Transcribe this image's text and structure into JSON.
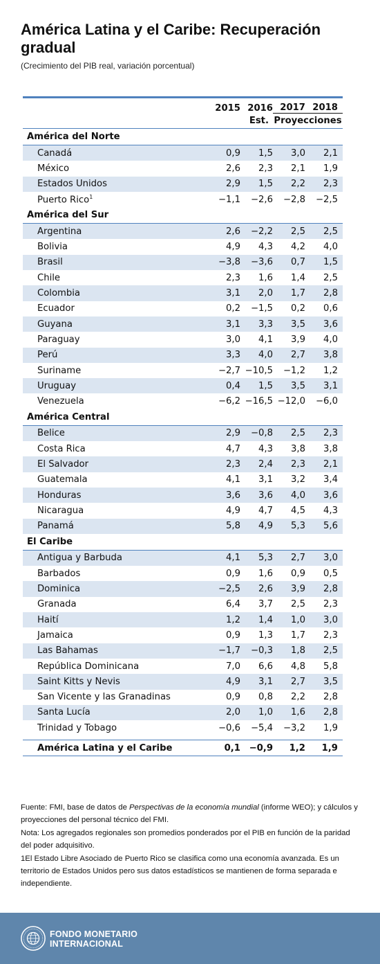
{
  "title": "América Latina y el Caribe: Recuperación gradual",
  "subtitle": "(Crecimiento del PIB real, variación porcentual)",
  "chart_data": {
    "type": "table",
    "columns": [
      "2015",
      "2016",
      "2017",
      "2018"
    ],
    "subheader": {
      "est": "Est.",
      "proj": "Proyecciones"
    },
    "groups": [
      {
        "name": "América del Norte",
        "rows": [
          {
            "label": "Canadá",
            "values": [
              "0,9",
              "1,5",
              "3,0",
              "2,1"
            ]
          },
          {
            "label": "México",
            "values": [
              "2,6",
              "2,3",
              "2,1",
              "1,9"
            ]
          },
          {
            "label": "Estados Unidos",
            "values": [
              "2,9",
              "1,5",
              "2,2",
              "2,3"
            ]
          },
          {
            "label": "Puerto Rico",
            "sup": "1",
            "values": [
              "−1,1",
              "−2,6",
              "−2,8",
              "−2,5"
            ]
          }
        ]
      },
      {
        "name": "América del Sur",
        "rows": [
          {
            "label": "Argentina",
            "values": [
              "2,6",
              "−2,2",
              "2,5",
              "2,5"
            ]
          },
          {
            "label": "Bolivia",
            "values": [
              "4,9",
              "4,3",
              "4,2",
              "4,0"
            ]
          },
          {
            "label": "Brasil",
            "values": [
              "−3,8",
              "−3,6",
              "0,7",
              "1,5"
            ]
          },
          {
            "label": "Chile",
            "values": [
              "2,3",
              "1,6",
              "1,4",
              "2,5"
            ]
          },
          {
            "label": "Colombia",
            "values": [
              "3,1",
              "2,0",
              "1,7",
              "2,8"
            ]
          },
          {
            "label": "Ecuador",
            "values": [
              "0,2",
              "−1,5",
              "0,2",
              "0,6"
            ]
          },
          {
            "label": "Guyana",
            "values": [
              "3,1",
              "3,3",
              "3,5",
              "3,6"
            ]
          },
          {
            "label": "Paraguay",
            "values": [
              "3,0",
              "4,1",
              "3,9",
              "4,0"
            ]
          },
          {
            "label": "Perú",
            "values": [
              "3,3",
              "4,0",
              "2,7",
              "3,8"
            ]
          },
          {
            "label": "Suriname",
            "values": [
              "−2,7",
              "−10,5",
              "−1,2",
              "1,2"
            ]
          },
          {
            "label": "Uruguay",
            "values": [
              "0,4",
              "1,5",
              "3,5",
              "3,1"
            ]
          },
          {
            "label": "Venezuela",
            "values": [
              "−6,2",
              "−16,5",
              "−12,0",
              "−6,0"
            ]
          }
        ]
      },
      {
        "name": "América Central",
        "rows": [
          {
            "label": "Belice",
            "values": [
              "2,9",
              "−0,8",
              "2,5",
              "2,3"
            ]
          },
          {
            "label": "Costa Rica",
            "values": [
              "4,7",
              "4,3",
              "3,8",
              "3,8"
            ]
          },
          {
            "label": "El Salvador",
            "values": [
              "2,3",
              "2,4",
              "2,3",
              "2,1"
            ]
          },
          {
            "label": "Guatemala",
            "values": [
              "4,1",
              "3,1",
              "3,2",
              "3,4"
            ]
          },
          {
            "label": "Honduras",
            "values": [
              "3,6",
              "3,6",
              "4,0",
              "3,6"
            ]
          },
          {
            "label": "Nicaragua",
            "values": [
              "4,9",
              "4,7",
              "4,5",
              "4,3"
            ]
          },
          {
            "label": "Panamá",
            "values": [
              "5,8",
              "4,9",
              "5,3",
              "5,6"
            ]
          }
        ]
      },
      {
        "name": "El Caribe",
        "rows": [
          {
            "label": "Antigua y Barbuda",
            "values": [
              "4,1",
              "5,3",
              "2,7",
              "3,0"
            ]
          },
          {
            "label": "Barbados",
            "values": [
              "0,9",
              "1,6",
              "0,9",
              "0,5"
            ]
          },
          {
            "label": "Dominica",
            "values": [
              "−2,5",
              "2,6",
              "3,9",
              "2,8"
            ]
          },
          {
            "label": "Granada",
            "values": [
              "6,4",
              "3,7",
              "2,5",
              "2,3"
            ]
          },
          {
            "label": "Haití",
            "values": [
              "1,2",
              "1,4",
              "1,0",
              "3,0"
            ]
          },
          {
            "label": "Jamaica",
            "values": [
              "0,9",
              "1,3",
              "1,7",
              "2,3"
            ]
          },
          {
            "label": "Las Bahamas",
            "values": [
              "−1,7",
              "−0,3",
              "1,8",
              "2,5"
            ]
          },
          {
            "label": "República Dominicana",
            "values": [
              "7,0",
              "6,6",
              "4,8",
              "5,8"
            ]
          },
          {
            "label": "Saint Kitts y Nevis",
            "values": [
              "4,9",
              "3,1",
              "2,7",
              "3,5"
            ]
          },
          {
            "label": "San Vicente y las Granadinas",
            "values": [
              "0,9",
              "0,8",
              "2,2",
              "2,8"
            ]
          },
          {
            "label": "Santa Lucía",
            "values": [
              "2,0",
              "1,0",
              "1,6",
              "2,8"
            ]
          },
          {
            "label": "Trinidad y Tobago",
            "values": [
              "−0,6",
              "−5,4",
              "−3,2",
              "1,9"
            ]
          }
        ]
      }
    ],
    "total": {
      "label": "América Latina y el Caribe",
      "values": [
        "0,1",
        "−0,9",
        "1,2",
        "1,9"
      ]
    }
  },
  "notes": {
    "source_a": "Fuente: FMI, base de datos de ",
    "source_italic": "Perspectivas de la economía mundial",
    "source_b": " (informe WEO); y cálculos y proyecciones del personal técnico del FMI.",
    "note": "Nota: Los agregados regionales son promedios ponderados por el PIB en función de la paridad del poder adquisitivo.",
    "footnote1": "1El Estado Libre Asociado de Puerto Rico se clasifica como una economía avanzada. Es un territorio de Estados Unidos pero sus datos estadísticos se mantienen de forma separada e independiente."
  },
  "footer": {
    "brand_line1": "FONDO MONETARIO",
    "brand_line2": "INTERNACIONAL",
    "logo_icon": "imf-seal-icon"
  }
}
